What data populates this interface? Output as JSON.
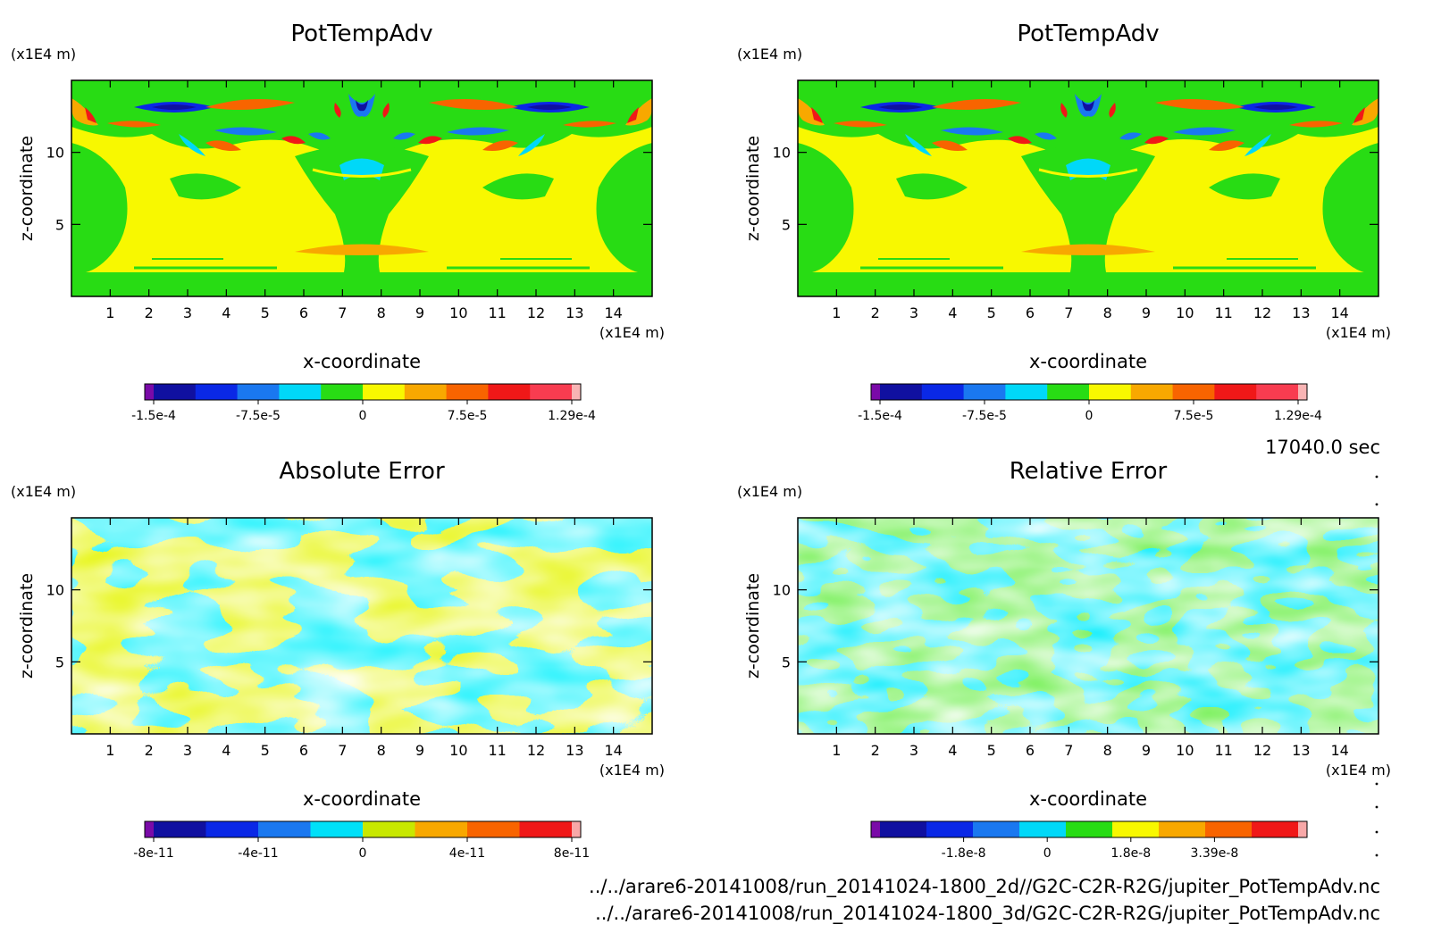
{
  "figure": {
    "time_label": "17040.0 sec",
    "files": [
      "../../arare6-20141008/run_20141024-1800_2d//G2C-C2R-R2G/jupiter_PotTempAdv.nc",
      "../../arare6-20141008/run_20141024-1800_3d/G2C-C2R-R2G/jupiter_PotTempAdv.nc"
    ]
  },
  "chart_data": [
    {
      "type": "heatmap",
      "title": "PotTempAdv",
      "xlabel": "x-coordinate",
      "ylabel": "z-coordinate",
      "x_unit": "(x1E4 m)",
      "y_unit": "(x1E4 m)",
      "xlim": [
        0,
        15
      ],
      "ylim": [
        0,
        15
      ],
      "x_ticks": [
        "1",
        "2",
        "3",
        "4",
        "5",
        "6",
        "7",
        "8",
        "9",
        "10",
        "11",
        "12",
        "13",
        "14"
      ],
      "y_ticks": [
        "5",
        "10"
      ],
      "colorbar": {
        "colors": [
          "#7a0aa8",
          "#1010a0",
          "#0a28e6",
          "#1a78f0",
          "#00d8f8",
          "#28dc14",
          "#f8f800",
          "#f8a800",
          "#f86400",
          "#f01818",
          "#f83c50",
          "#f8b4b4"
        ],
        "tick_labels": [
          "-1.5e-4",
          "-7.5e-5",
          "0",
          "7.5e-5",
          "1.29e-4"
        ]
      }
    },
    {
      "type": "heatmap",
      "title": "PotTempAdv",
      "xlabel": "x-coordinate",
      "ylabel": "z-coordinate",
      "x_unit": "(x1E4 m)",
      "y_unit": "(x1E4 m)",
      "xlim": [
        0,
        15
      ],
      "ylim": [
        0,
        15
      ],
      "x_ticks": [
        "1",
        "2",
        "3",
        "4",
        "5",
        "6",
        "7",
        "8",
        "9",
        "10",
        "11",
        "12",
        "13",
        "14"
      ],
      "y_ticks": [
        "5",
        "10"
      ],
      "colorbar": {
        "colors": [
          "#7a0aa8",
          "#1010a0",
          "#0a28e6",
          "#1a78f0",
          "#00d8f8",
          "#28dc14",
          "#f8f800",
          "#f8a800",
          "#f86400",
          "#f01818",
          "#f83c50",
          "#f8b4b4"
        ],
        "tick_labels": [
          "-1.5e-4",
          "-7.5e-5",
          "0",
          "7.5e-5",
          "1.29e-4"
        ]
      }
    },
    {
      "type": "heatmap",
      "title": "Absolute Error",
      "xlabel": "x-coordinate",
      "ylabel": "z-coordinate",
      "x_unit": "(x1E4 m)",
      "y_unit": "(x1E4 m)",
      "xlim": [
        0,
        15
      ],
      "ylim": [
        0,
        15
      ],
      "x_ticks": [
        "1",
        "2",
        "3",
        "4",
        "5",
        "6",
        "7",
        "8",
        "9",
        "10",
        "11",
        "12",
        "13",
        "14"
      ],
      "y_ticks": [
        "5",
        "10"
      ],
      "colorbar": {
        "colors": [
          "#7a0aa8",
          "#1010a0",
          "#0a28e6",
          "#1a78f0",
          "#00e0f8",
          "#c8e800",
          "#f8a800",
          "#f86400",
          "#f01818",
          "#f8a8a8"
        ],
        "tick_labels": [
          "-8e-11",
          "-4e-11",
          "0",
          "4e-11",
          "8e-11"
        ]
      }
    },
    {
      "type": "heatmap",
      "title": "Relative Error",
      "xlabel": "x-coordinate",
      "ylabel": "z-coordinate",
      "x_unit": "(x1E4 m)",
      "y_unit": "(x1E4 m)",
      "xlim": [
        0,
        15
      ],
      "ylim": [
        0,
        15
      ],
      "x_ticks": [
        "1",
        "2",
        "3",
        "4",
        "5",
        "6",
        "7",
        "8",
        "9",
        "10",
        "11",
        "12",
        "13",
        "14"
      ],
      "y_ticks": [
        "5",
        "10"
      ],
      "colorbar": {
        "colors": [
          "#7a0aa8",
          "#1010a0",
          "#0a28e6",
          "#1a78f0",
          "#00d8f8",
          "#28dc14",
          "#f8f800",
          "#f8a800",
          "#f86400",
          "#f01818",
          "#f8a8a8"
        ],
        "tick_labels": [
          "-1.8e-8",
          "0",
          "1.8e-8",
          "3.39e-8"
        ]
      }
    }
  ]
}
